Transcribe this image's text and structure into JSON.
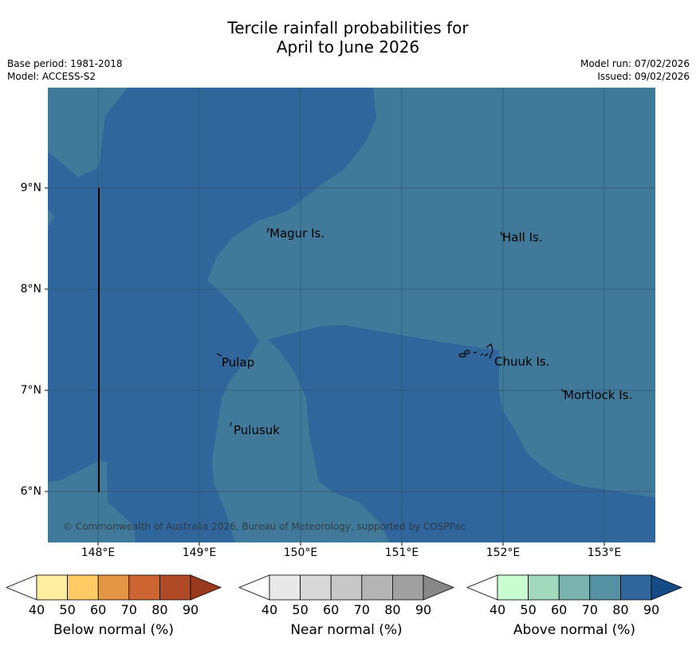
{
  "title_line1": "Tercile rainfall probabilities for",
  "title_line2": "April to June 2026",
  "base_period": "Base period: 1981-2018",
  "model": "Model: ACCESS-S2",
  "model_run": "Model run: 07/02/2026",
  "issued": "Issued: 09/02/2026",
  "copyright": "© Commonwealth of Australia 2026, Bureau of Meteorology, supported by COSPPac",
  "lat_labels": [
    "9°N",
    "8°N",
    "7°N",
    "6°N"
  ],
  "lon_labels": [
    "148°E",
    "149°E",
    "150°E",
    "151°E",
    "152°E",
    "153°E"
  ],
  "places": [
    "Magur Is.",
    "Hall Is.",
    "Pulap",
    "Chuuk Is.",
    "Mortlock Is.",
    "Pulusuk"
  ],
  "colors": {
    "above_70": "#41799a",
    "above_80": "#31669c",
    "grid": "#2c4f6b"
  },
  "colorbars": [
    {
      "title": "Below normal (%)",
      "ticks": [
        "40",
        "50",
        "60",
        "70",
        "80",
        "90"
      ],
      "colors": [
        "#ffffff",
        "#ffeea0",
        "#fecb65",
        "#e39645",
        "#cd6532",
        "#b04a26",
        "#993a1f"
      ]
    },
    {
      "title": "Near normal (%)",
      "ticks": [
        "40",
        "50",
        "60",
        "70",
        "80",
        "90"
      ],
      "colors": [
        "#ffffff",
        "#e8e8e8",
        "#d8d8d8",
        "#c8c8c8",
        "#b4b4b4",
        "#a0a0a0",
        "#888888"
      ]
    },
    {
      "title": "Above normal (%)",
      "ticks": [
        "40",
        "50",
        "60",
        "70",
        "80",
        "90"
      ],
      "colors": [
        "#ffffff",
        "#c9fcd0",
        "#a2d8be",
        "#7ab3ad",
        "#5591a2",
        "#31669c",
        "#154b85"
      ]
    }
  ]
}
